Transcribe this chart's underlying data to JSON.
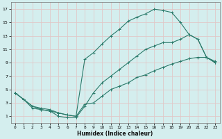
{
  "xlabel": "Humidex (Indice chaleur)",
  "bg_color": "#d4eeee",
  "grid_color": "#e0c8c8",
  "line_color": "#2a7a6a",
  "xlim": [
    -0.5,
    23.5
  ],
  "ylim": [
    0,
    18
  ],
  "xticks": [
    0,
    1,
    2,
    3,
    4,
    5,
    6,
    7,
    8,
    9,
    10,
    11,
    12,
    13,
    14,
    15,
    16,
    17,
    18,
    19,
    20,
    21,
    22,
    23
  ],
  "yticks": [
    1,
    3,
    5,
    7,
    9,
    11,
    13,
    15,
    17
  ],
  "curve1_x": [
    0,
    1,
    2,
    3,
    4,
    5,
    6,
    7,
    8,
    9,
    10,
    11,
    12,
    13,
    14,
    15,
    16,
    17,
    18,
    19,
    20,
    21,
    22,
    23
  ],
  "curve1_y": [
    4.5,
    3.5,
    2.5,
    2.2,
    2.0,
    1.5,
    1.2,
    1.0,
    9.5,
    10.5,
    11.8,
    13.0,
    14.0,
    15.2,
    15.8,
    16.3,
    17.0,
    16.8,
    16.5,
    15.0,
    13.2,
    12.5,
    9.8,
    9.2
  ],
  "curve2_x": [
    0,
    1,
    2,
    3,
    4,
    5,
    6,
    7,
    8,
    9,
    10,
    11,
    12,
    13,
    14,
    15,
    16,
    17,
    18,
    19,
    20,
    21,
    22,
    23
  ],
  "curve2_y": [
    4.5,
    3.5,
    2.5,
    2.0,
    1.8,
    1.0,
    0.8,
    0.8,
    2.5,
    4.5,
    6.0,
    7.0,
    8.0,
    9.0,
    10.0,
    11.0,
    11.5,
    12.0,
    12.0,
    12.5,
    13.2,
    12.5,
    9.8,
    9.0
  ],
  "curve3_x": [
    0,
    1,
    2,
    3,
    4,
    5,
    6,
    7,
    8,
    9,
    10,
    11,
    12,
    13,
    14,
    15,
    16,
    17,
    18,
    19,
    20,
    21,
    22,
    23
  ],
  "curve3_y": [
    4.5,
    3.5,
    2.2,
    2.0,
    1.8,
    1.5,
    1.2,
    1.0,
    2.8,
    3.0,
    4.0,
    5.0,
    5.5,
    6.0,
    6.8,
    7.2,
    7.8,
    8.3,
    8.8,
    9.2,
    9.6,
    9.8,
    9.8,
    9.0
  ]
}
